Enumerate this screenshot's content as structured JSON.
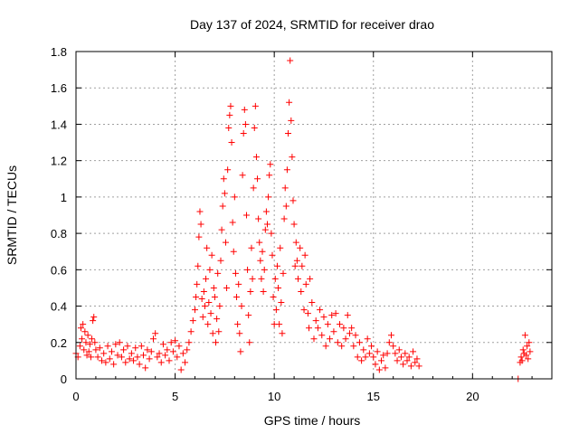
{
  "chart_data": {
    "type": "scatter",
    "title": "Day 137 of 2024, SRMTID for receiver drao",
    "xlabel": "GPS time / hours",
    "ylabel": "SRMTID / TECUs",
    "xlim": [
      0,
      24
    ],
    "ylim": [
      0,
      1.8
    ],
    "grid": true,
    "x_ticks": [
      "0",
      "5",
      "10",
      "15",
      "20"
    ],
    "y_ticks": [
      "0",
      "0.2",
      "0.4",
      "0.6",
      "0.8",
      "1",
      "1.2",
      "1.4",
      "1.6",
      "1.8"
    ],
    "marker": "plus",
    "color": "#ff0000",
    "series": [
      {
        "name": "SRMTID",
        "points": [
          [
            0.0,
            0.14
          ],
          [
            0.1,
            0.12
          ],
          [
            0.2,
            0.18
          ],
          [
            0.25,
            0.28
          ],
          [
            0.3,
            0.22
          ],
          [
            0.35,
            0.3
          ],
          [
            0.4,
            0.16
          ],
          [
            0.45,
            0.26
          ],
          [
            0.5,
            0.2
          ],
          [
            0.55,
            0.13
          ],
          [
            0.6,
            0.24
          ],
          [
            0.65,
            0.15
          ],
          [
            0.7,
            0.19
          ],
          [
            0.75,
            0.12
          ],
          [
            0.8,
            0.22
          ],
          [
            0.85,
            0.32
          ],
          [
            0.9,
            0.34
          ],
          [
            0.95,
            0.2
          ],
          [
            1.0,
            0.16
          ],
          [
            1.1,
            0.12
          ],
          [
            1.2,
            0.17
          ],
          [
            1.3,
            0.1
          ],
          [
            1.4,
            0.14
          ],
          [
            1.5,
            0.09
          ],
          [
            1.6,
            0.18
          ],
          [
            1.7,
            0.11
          ],
          [
            1.8,
            0.15
          ],
          [
            1.9,
            0.08
          ],
          [
            2.0,
            0.19
          ],
          [
            2.1,
            0.13
          ],
          [
            2.2,
            0.2
          ],
          [
            2.3,
            0.12
          ],
          [
            2.4,
            0.16
          ],
          [
            2.5,
            0.09
          ],
          [
            2.6,
            0.18
          ],
          [
            2.7,
            0.11
          ],
          [
            2.8,
            0.14
          ],
          [
            2.9,
            0.1
          ],
          [
            3.0,
            0.17
          ],
          [
            3.1,
            0.12
          ],
          [
            3.2,
            0.08
          ],
          [
            3.3,
            0.18
          ],
          [
            3.4,
            0.13
          ],
          [
            3.5,
            0.06
          ],
          [
            3.6,
            0.16
          ],
          [
            3.7,
            0.11
          ],
          [
            3.8,
            0.15
          ],
          [
            3.9,
            0.22
          ],
          [
            4.0,
            0.25
          ],
          [
            4.1,
            0.12
          ],
          [
            4.2,
            0.14
          ],
          [
            4.3,
            0.09
          ],
          [
            4.4,
            0.19
          ],
          [
            4.5,
            0.13
          ],
          [
            4.6,
            0.16
          ],
          [
            4.7,
            0.1
          ],
          [
            4.8,
            0.2
          ],
          [
            4.9,
            0.15
          ],
          [
            5.0,
            0.21
          ],
          [
            5.1,
            0.12
          ],
          [
            5.2,
            0.18
          ],
          [
            5.3,
            0.05
          ],
          [
            5.4,
            0.14
          ],
          [
            5.5,
            0.09
          ],
          [
            5.6,
            0.16
          ],
          [
            5.7,
            0.2
          ],
          [
            5.8,
            0.26
          ],
          [
            5.9,
            0.32
          ],
          [
            6.0,
            0.38
          ],
          [
            6.05,
            0.45
          ],
          [
            6.1,
            0.52
          ],
          [
            6.15,
            0.62
          ],
          [
            6.2,
            0.78
          ],
          [
            6.25,
            0.92
          ],
          [
            6.3,
            0.85
          ],
          [
            6.35,
            0.44
          ],
          [
            6.4,
            0.34
          ],
          [
            6.45,
            0.48
          ],
          [
            6.5,
            0.4
          ],
          [
            6.55,
            0.55
          ],
          [
            6.6,
            0.72
          ],
          [
            6.65,
            0.3
          ],
          [
            6.7,
            0.42
          ],
          [
            6.75,
            0.6
          ],
          [
            6.8,
            0.36
          ],
          [
            6.85,
            0.68
          ],
          [
            6.9,
            0.25
          ],
          [
            6.95,
            0.5
          ],
          [
            7.0,
            0.45
          ],
          [
            7.05,
            0.2
          ],
          [
            7.1,
            0.33
          ],
          [
            7.15,
            0.58
          ],
          [
            7.2,
            0.26
          ],
          [
            7.25,
            0.4
          ],
          [
            7.3,
            0.65
          ],
          [
            7.35,
            0.82
          ],
          [
            7.4,
            0.95
          ],
          [
            7.45,
            1.1
          ],
          [
            7.5,
            1.02
          ],
          [
            7.55,
            0.75
          ],
          [
            7.6,
            0.5
          ],
          [
            7.65,
            1.15
          ],
          [
            7.7,
            1.38
          ],
          [
            7.75,
            1.45
          ],
          [
            7.8,
            1.5
          ],
          [
            7.85,
            1.3
          ],
          [
            7.9,
            0.86
          ],
          [
            7.95,
            0.7
          ],
          [
            8.0,
            1.0
          ],
          [
            8.05,
            0.58
          ],
          [
            8.1,
            0.45
          ],
          [
            8.15,
            0.3
          ],
          [
            8.2,
            0.52
          ],
          [
            8.25,
            0.25
          ],
          [
            8.3,
            0.15
          ],
          [
            8.35,
            0.4
          ],
          [
            8.4,
            1.12
          ],
          [
            8.45,
            1.35
          ],
          [
            8.5,
            1.48
          ],
          [
            8.55,
            1.4
          ],
          [
            8.6,
            0.9
          ],
          [
            8.65,
            0.6
          ],
          [
            8.7,
            0.35
          ],
          [
            8.75,
            0.2
          ],
          [
            8.8,
            0.48
          ],
          [
            8.85,
            0.72
          ],
          [
            8.9,
            0.55
          ],
          [
            8.95,
            1.05
          ],
          [
            9.0,
            1.38
          ],
          [
            9.05,
            1.5
          ],
          [
            9.1,
            1.22
          ],
          [
            9.15,
            1.1
          ],
          [
            9.2,
            0.88
          ],
          [
            9.25,
            0.75
          ],
          [
            9.3,
            0.65
          ],
          [
            9.35,
            0.55
          ],
          [
            9.4,
            0.7
          ],
          [
            9.45,
            0.48
          ],
          [
            9.5,
            0.6
          ],
          [
            9.55,
            0.82
          ],
          [
            9.6,
            0.92
          ],
          [
            9.65,
            0.85
          ],
          [
            9.7,
            1.0
          ],
          [
            9.75,
            1.12
          ],
          [
            9.8,
            1.18
          ],
          [
            9.85,
            0.8
          ],
          [
            9.9,
            0.68
          ],
          [
            9.95,
            0.45
          ],
          [
            10.0,
            0.3
          ],
          [
            10.05,
            0.55
          ],
          [
            10.1,
            0.38
          ],
          [
            10.15,
            0.62
          ],
          [
            10.2,
            0.5
          ],
          [
            10.25,
            0.3
          ],
          [
            10.3,
            0.72
          ],
          [
            10.35,
            0.42
          ],
          [
            10.4,
            0.25
          ],
          [
            10.45,
            0.58
          ],
          [
            10.5,
            0.88
          ],
          [
            10.55,
            1.05
          ],
          [
            10.6,
            0.95
          ],
          [
            10.65,
            1.15
          ],
          [
            10.7,
            1.35
          ],
          [
            10.75,
            1.52
          ],
          [
            10.8,
            1.75
          ],
          [
            10.85,
            1.42
          ],
          [
            10.9,
            1.22
          ],
          [
            10.95,
            0.98
          ],
          [
            11.0,
            0.85
          ],
          [
            11.05,
            0.62
          ],
          [
            11.1,
            0.75
          ],
          [
            11.15,
            0.65
          ],
          [
            11.2,
            0.55
          ],
          [
            11.3,
            0.72
          ],
          [
            11.35,
            0.48
          ],
          [
            11.4,
            0.62
          ],
          [
            11.5,
            0.38
          ],
          [
            11.55,
            0.68
          ],
          [
            11.6,
            0.52
          ],
          [
            11.7,
            0.36
          ],
          [
            11.75,
            0.28
          ],
          [
            11.8,
            0.55
          ],
          [
            11.9,
            0.42
          ],
          [
            12.0,
            0.22
          ],
          [
            12.1,
            0.32
          ],
          [
            12.2,
            0.28
          ],
          [
            12.3,
            0.38
          ],
          [
            12.4,
            0.24
          ],
          [
            12.5,
            0.34
          ],
          [
            12.6,
            0.18
          ],
          [
            12.7,
            0.3
          ],
          [
            12.8,
            0.22
          ],
          [
            12.9,
            0.35
          ],
          [
            13.0,
            0.26
          ],
          [
            13.1,
            0.36
          ],
          [
            13.2,
            0.2
          ],
          [
            13.3,
            0.3
          ],
          [
            13.4,
            0.18
          ],
          [
            13.5,
            0.28
          ],
          [
            13.6,
            0.22
          ],
          [
            13.7,
            0.35
          ],
          [
            13.8,
            0.25
          ],
          [
            13.9,
            0.28
          ],
          [
            14.0,
            0.18
          ],
          [
            14.1,
            0.24
          ],
          [
            14.2,
            0.12
          ],
          [
            14.3,
            0.2
          ],
          [
            14.4,
            0.1
          ],
          [
            14.5,
            0.16
          ],
          [
            14.6,
            0.12
          ],
          [
            14.7,
            0.22
          ],
          [
            14.8,
            0.14
          ],
          [
            14.9,
            0.18
          ],
          [
            15.0,
            0.12
          ],
          [
            15.1,
            0.08
          ],
          [
            15.2,
            0.15
          ],
          [
            15.3,
            0.05
          ],
          [
            15.4,
            0.1
          ],
          [
            15.5,
            0.13
          ],
          [
            15.6,
            0.06
          ],
          [
            15.7,
            0.14
          ],
          [
            15.8,
            0.2
          ],
          [
            15.9,
            0.24
          ],
          [
            16.0,
            0.18
          ],
          [
            16.1,
            0.14
          ],
          [
            16.2,
            0.1
          ],
          [
            16.3,
            0.16
          ],
          [
            16.4,
            0.12
          ],
          [
            16.5,
            0.08
          ],
          [
            16.6,
            0.14
          ],
          [
            16.7,
            0.1
          ],
          [
            16.8,
            0.12
          ],
          [
            16.9,
            0.07
          ],
          [
            17.0,
            0.15
          ],
          [
            17.1,
            0.09
          ],
          [
            17.2,
            0.11
          ],
          [
            17.3,
            0.07
          ],
          [
            22.3,
            0.0
          ],
          [
            22.4,
            0.09
          ],
          [
            22.45,
            0.12
          ],
          [
            22.5,
            0.1
          ],
          [
            22.55,
            0.16
          ],
          [
            22.6,
            0.14
          ],
          [
            22.65,
            0.24
          ],
          [
            22.7,
            0.13
          ],
          [
            22.75,
            0.18
          ],
          [
            22.8,
            0.11
          ],
          [
            22.85,
            0.2
          ],
          [
            22.9,
            0.15
          ]
        ]
      }
    ]
  }
}
